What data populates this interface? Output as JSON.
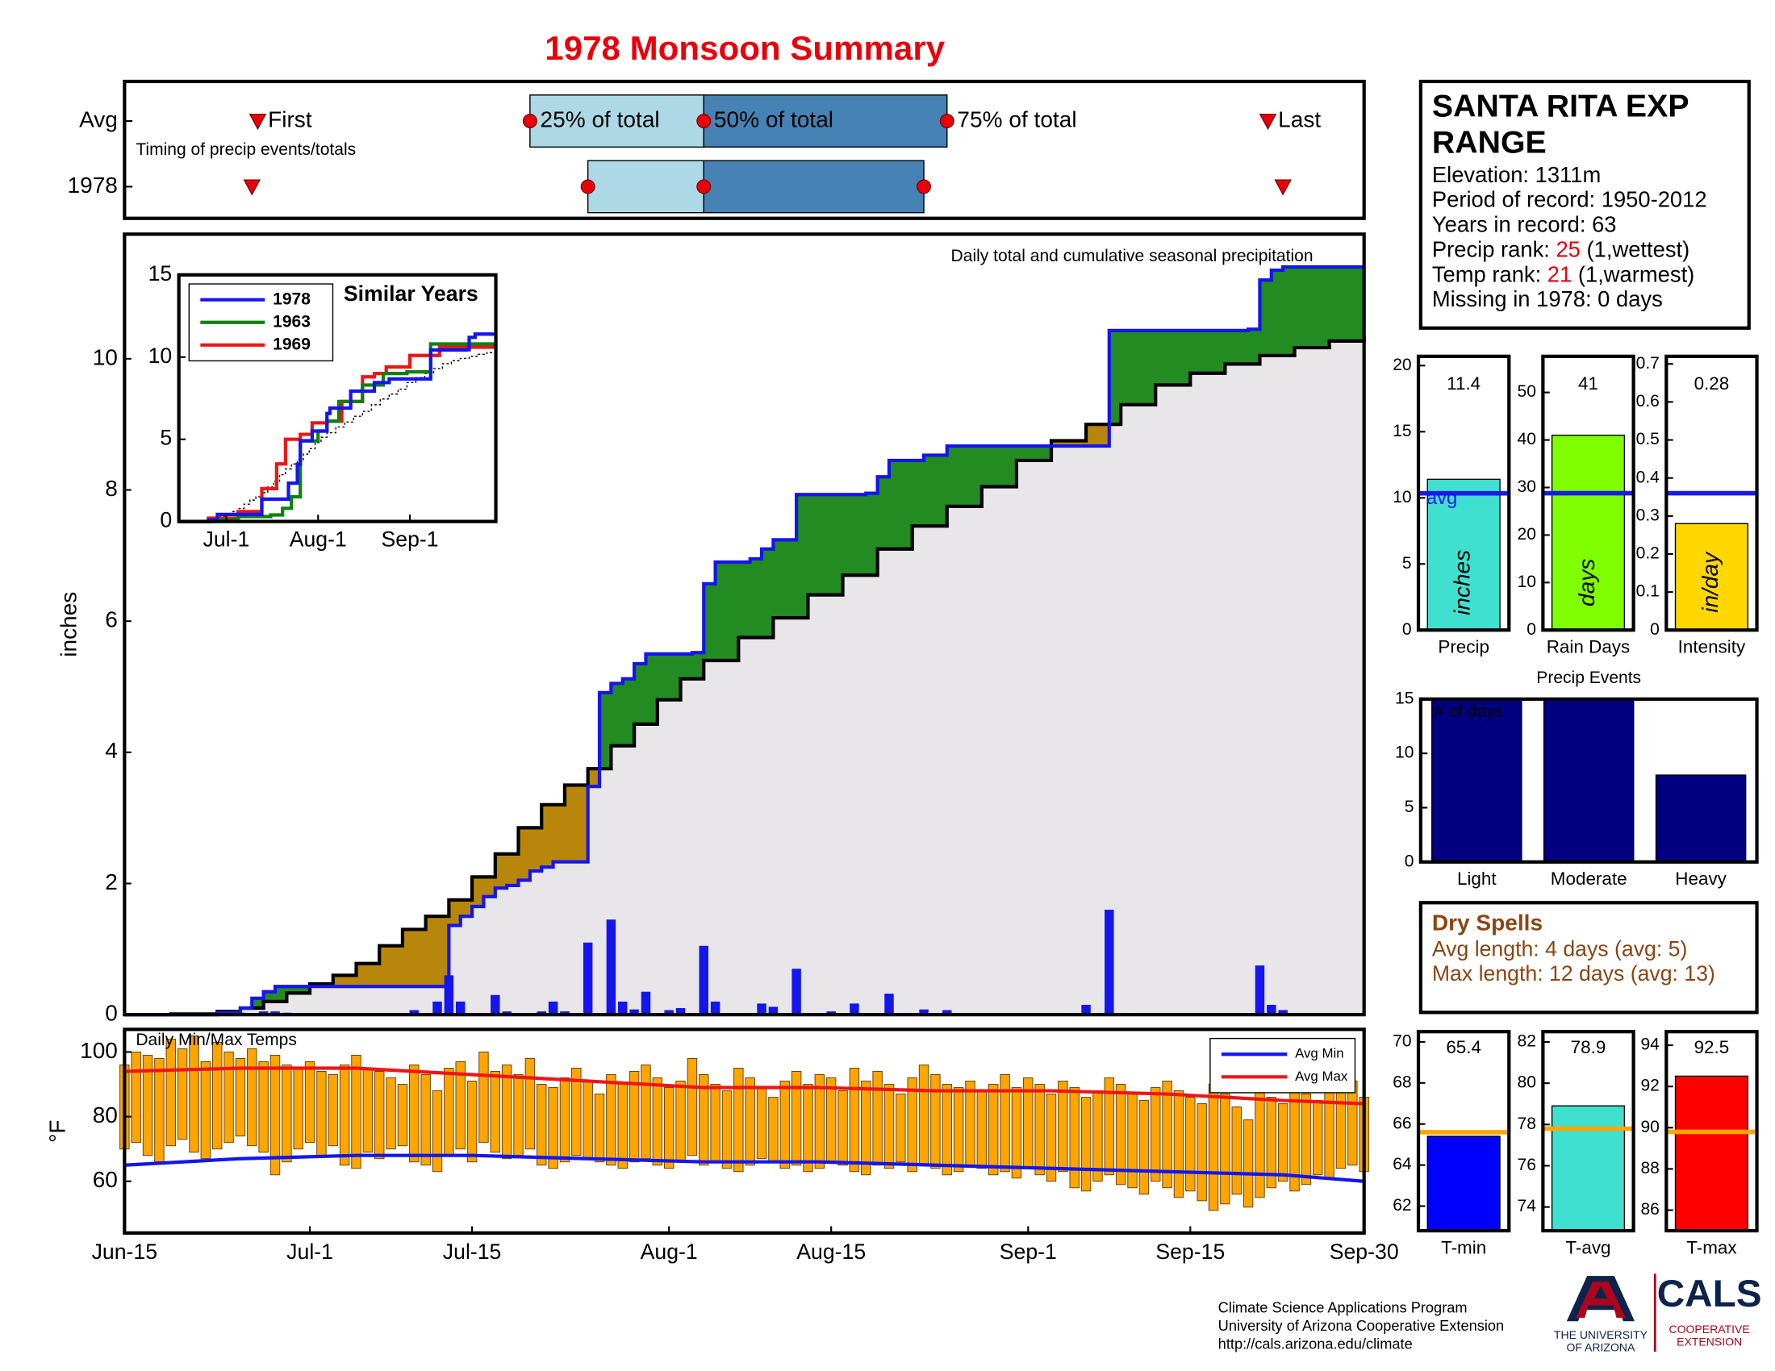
{
  "title": "1978 Monsoon Summary",
  "chart_data": [
    {
      "type": "timing",
      "title": "Timing of precip events/totals",
      "xlim": [
        0,
        107
      ],
      "event_labels": [
        "First",
        "25% of total",
        "50% of total",
        "75% of total",
        "Last"
      ],
      "marker_color": "#e8000b",
      "box_colors": [
        "#add8e6",
        "#4682b4"
      ],
      "series": [
        {
          "name": "Avg",
          "values": [
            11.5,
            35,
            50,
            71,
            98.7
          ]
        },
        {
          "name": "1978",
          "values": [
            11,
            40,
            50,
            69,
            100
          ]
        }
      ]
    },
    {
      "type": "area",
      "title": "Daily total and cumulative seasonal precipitation",
      "y_label": "inches",
      "xlim": [
        0,
        107
      ],
      "ylim": [
        0,
        11.9
      ],
      "yticks": [
        0,
        2,
        4,
        6,
        8,
        10
      ],
      "above_color": "#228b22",
      "below_color": "#b8860b",
      "fill_color": "#e8e6e8",
      "cumulative": {
        "color": "#1515ee",
        "x": [
          0,
          8,
          10,
          11,
          12,
          13,
          27,
          28,
          29,
          30,
          31,
          32,
          33,
          34,
          35,
          36,
          37,
          39,
          40,
          41,
          42,
          43,
          44,
          45,
          49,
          50,
          51,
          54,
          55,
          56,
          58,
          64,
          65,
          66,
          69,
          71,
          84,
          85,
          97,
          98,
          99,
          100,
          107
        ],
        "values": [
          0,
          0.03,
          0.1,
          0.25,
          0.35,
          0.43,
          0.43,
          1.36,
          1.5,
          1.65,
          1.8,
          1.93,
          1.97,
          2.05,
          2.19,
          2.25,
          2.33,
          2.33,
          3.48,
          4.91,
          5.05,
          5.12,
          5.35,
          5.5,
          5.52,
          6.57,
          6.9,
          6.95,
          7.1,
          7.24,
          7.93,
          7.95,
          8.2,
          8.45,
          8.53,
          8.67,
          8.67,
          10.43,
          10.45,
          11.2,
          11.35,
          11.4,
          11.4
        ]
      },
      "average_cumulative": {
        "color": "#000000",
        "x": [
          0,
          4,
          8,
          10,
          12,
          14,
          16,
          18,
          20,
          22,
          24,
          26,
          28,
          30,
          32,
          34,
          36,
          38,
          40,
          42,
          44,
          46,
          48,
          50,
          53,
          56,
          59,
          62,
          65,
          68,
          71,
          74,
          77,
          80,
          83,
          86,
          89,
          92,
          95,
          98,
          101,
          104,
          107
        ],
        "values": [
          0,
          0.01,
          0.05,
          0.1,
          0.2,
          0.33,
          0.47,
          0.6,
          0.78,
          1.05,
          1.3,
          1.5,
          1.75,
          2.1,
          2.45,
          2.85,
          3.2,
          3.5,
          3.75,
          4.1,
          4.43,
          4.8,
          5.12,
          5.4,
          5.75,
          6.05,
          6.4,
          6.7,
          7.1,
          7.45,
          7.75,
          8.05,
          8.45,
          8.75,
          9.0,
          9.3,
          9.6,
          9.78,
          9.92,
          10.05,
          10.17,
          10.27,
          10.36
        ]
      },
      "daily": {
        "color": "#1515ee",
        "x": [
          10,
          12,
          13,
          14,
          25,
          27,
          28,
          29,
          32,
          33,
          36,
          37,
          38,
          40,
          42,
          43,
          44,
          45,
          47,
          48,
          50,
          51,
          55,
          56,
          58,
          61,
          63,
          66,
          69,
          71,
          83,
          85,
          98,
          99,
          100
        ],
        "values": [
          0.03,
          0.05,
          0.05,
          0.03,
          0.07,
          0.2,
          0.6,
          0.2,
          0.3,
          0.05,
          0.05,
          0.2,
          0.05,
          1.1,
          1.45,
          0.2,
          0.08,
          0.35,
          0.07,
          0.1,
          1.05,
          0.2,
          0.17,
          0.12,
          0.7,
          0.05,
          0.17,
          0.32,
          0.08,
          0.07,
          0.15,
          1.6,
          0.75,
          0.15,
          0.07
        ]
      }
    },
    {
      "type": "line",
      "title": "Similar Years",
      "xlim": [
        0,
        107
      ],
      "ylim": [
        0,
        15
      ],
      "xticks": [
        {
          "value": 16,
          "label": "Jul-1"
        },
        {
          "value": 47,
          "label": "Aug-1"
        },
        {
          "value": 78,
          "label": "Sep-1"
        }
      ],
      "yticks": [
        0,
        5,
        10,
        15
      ],
      "legend": "upper left",
      "series": [
        {
          "name": "1978",
          "color": "#1515ee",
          "x": [
            0,
            10,
            13,
            27,
            28,
            37,
            40,
            41,
            45,
            50,
            51,
            58,
            66,
            71,
            84,
            85,
            97,
            98,
            100,
            107
          ],
          "values": [
            0,
            0.1,
            0.43,
            0.43,
            1.36,
            2.33,
            3.48,
            4.91,
            5.5,
            6.57,
            6.9,
            7.93,
            8.45,
            8.67,
            8.67,
            10.43,
            10.45,
            11.2,
            11.4,
            11.4
          ]
        },
        {
          "name": "1963",
          "color": "#108010",
          "x": [
            0,
            12,
            20,
            31,
            35,
            38,
            41,
            47,
            50,
            54,
            62,
            69,
            77,
            85,
            107
          ],
          "values": [
            0,
            0.1,
            0.3,
            0.4,
            0.8,
            1.5,
            4.9,
            5.5,
            6.1,
            7.3,
            8.3,
            9.0,
            9.1,
            10.8,
            10.9
          ]
        },
        {
          "name": "1969",
          "color": "#ee1515",
          "x": [
            0,
            10,
            20,
            28,
            33,
            36,
            41,
            45,
            50,
            55,
            62,
            66,
            70,
            78,
            88,
            107
          ],
          "values": [
            0,
            0.2,
            0.6,
            2,
            3.5,
            5,
            5.3,
            6,
            6.1,
            7.3,
            8.8,
            9.0,
            9.4,
            10.1,
            10.6,
            10.6
          ]
        }
      ]
    },
    {
      "type": "range",
      "title": "Daily Min/Max Temps",
      "y_label": "°F",
      "xlim": [
        0,
        107
      ],
      "ylim": [
        44,
        107
      ],
      "xticks": [
        {
          "value": 0,
          "label": "Jun-15"
        },
        {
          "value": 16,
          "label": "Jul-1"
        },
        {
          "value": 30,
          "label": "Jul-15"
        },
        {
          "value": 47,
          "label": "Aug-1"
        },
        {
          "value": 61,
          "label": "Aug-15"
        },
        {
          "value": 78,
          "label": "Sep-1"
        },
        {
          "value": 92,
          "label": "Sep-15"
        },
        {
          "value": 107,
          "label": "Sep-30"
        }
      ],
      "yticks": [
        60,
        80,
        100
      ],
      "legend": "upper right",
      "bar_color": "#ffa500",
      "x": [
        0,
        1,
        2,
        3,
        4,
        5,
        6,
        7,
        8,
        9,
        10,
        11,
        12,
        13,
        14,
        15,
        16,
        17,
        18,
        19,
        20,
        21,
        22,
        23,
        24,
        25,
        26,
        27,
        28,
        29,
        30,
        31,
        32,
        33,
        34,
        35,
        36,
        37,
        38,
        39,
        40,
        41,
        42,
        43,
        44,
        45,
        46,
        47,
        48,
        49,
        50,
        51,
        52,
        53,
        54,
        55,
        56,
        57,
        58,
        59,
        60,
        61,
        62,
        63,
        64,
        65,
        66,
        67,
        68,
        69,
        70,
        71,
        72,
        73,
        74,
        75,
        76,
        77,
        78,
        79,
        80,
        81,
        82,
        83,
        84,
        85,
        86,
        87,
        88,
        89,
        90,
        91,
        92,
        93,
        94,
        95,
        96,
        97,
        98,
        99,
        100,
        101,
        102,
        103,
        104,
        105,
        106,
        107
      ],
      "high": [
        96,
        100,
        99,
        98,
        104,
        101,
        105,
        97,
        103,
        100,
        98,
        101,
        97,
        99,
        96,
        95,
        97,
        94,
        93,
        96,
        99,
        95,
        94,
        92,
        90,
        96,
        93,
        88,
        95,
        97,
        91,
        100,
        94,
        96,
        93,
        98,
        90,
        89,
        92,
        95,
        91,
        87,
        93,
        90,
        94,
        96,
        92,
        89,
        91,
        98,
        93,
        90,
        88,
        95,
        92,
        89,
        86,
        91,
        94,
        90,
        93,
        92,
        88,
        95,
        91,
        94,
        90,
        87,
        92,
        96,
        93,
        90,
        89,
        91,
        88,
        90,
        93,
        89,
        92,
        90,
        87,
        91,
        89,
        86,
        88,
        92,
        90,
        87,
        85,
        89,
        91,
        88,
        86,
        84,
        90,
        87,
        83,
        79,
        88,
        86,
        84,
        89,
        87,
        85,
        90,
        88,
        91,
        86
      ],
      "low": [
        70,
        72,
        68,
        66,
        71,
        73,
        69,
        67,
        70,
        72,
        74,
        71,
        69,
        62,
        66,
        70,
        72,
        68,
        71,
        65,
        64,
        69,
        67,
        70,
        71,
        66,
        65,
        63,
        68,
        70,
        66,
        72,
        69,
        67,
        68,
        70,
        65,
        64,
        66,
        68,
        67,
        66,
        65,
        64,
        66,
        67,
        65,
        64,
        66,
        68,
        65,
        66,
        64,
        63,
        65,
        67,
        66,
        64,
        65,
        63,
        64,
        66,
        65,
        63,
        62,
        65,
        64,
        66,
        63,
        65,
        64,
        62,
        63,
        65,
        64,
        62,
        63,
        61,
        64,
        62,
        60,
        63,
        58,
        57,
        60,
        62,
        59,
        58,
        56,
        60,
        58,
        55,
        57,
        54,
        51,
        53,
        56,
        52,
        55,
        58,
        60,
        57,
        59,
        62,
        61,
        64,
        65,
        63
      ],
      "series": [
        {
          "name": "Avg Min",
          "color": "#1515ee",
          "x": [
            0,
            10,
            20,
            30,
            40,
            50,
            60,
            70,
            80,
            90,
            100,
            107
          ],
          "values": [
            65,
            67,
            68,
            68,
            67,
            66,
            66,
            65,
            64,
            63,
            62,
            60
          ]
        },
        {
          "name": "Avg Max",
          "color": "#ee1515",
          "x": [
            0,
            10,
            20,
            30,
            40,
            50,
            60,
            70,
            80,
            90,
            100,
            107
          ],
          "values": [
            94,
            95,
            95,
            93,
            91,
            89,
            89,
            88,
            88,
            87,
            85,
            84
          ]
        }
      ]
    },
    {
      "type": "bar",
      "categories": [
        "Precip"
      ],
      "values": [
        11.4
      ],
      "color": "#40e0d0",
      "ylim": [
        0,
        20.7
      ],
      "yticks": [
        0,
        5,
        10,
        15,
        20
      ],
      "average": 10.34,
      "average_color": "#1a1ae6",
      "average_label": "avg",
      "unit_label": "inches",
      "data_labels": true
    },
    {
      "type": "bar",
      "categories": [
        "Rain Days"
      ],
      "values": [
        41
      ],
      "color": "#7fff00",
      "ylim": [
        0,
        57.6
      ],
      "yticks": [
        0,
        10,
        20,
        30,
        40,
        50
      ],
      "average": 28.8,
      "average_color": "#1a1ae6",
      "unit_label": "days",
      "data_labels": true
    },
    {
      "type": "bar",
      "categories": [
        "Intensity"
      ],
      "values": [
        0.28
      ],
      "color": "#ffd700",
      "ylim": [
        0,
        0.72
      ],
      "yticks": [
        0,
        0.1,
        0.2,
        0.3,
        0.4,
        0.5,
        0.6,
        0.7
      ],
      "average": 0.36,
      "average_color": "#1a1ae6",
      "unit_label": "in/day",
      "data_labels": true
    },
    {
      "type": "bar",
      "title": "Precip Events",
      "y_label": "# of days",
      "categories": [
        "Light",
        "Moderate",
        "Heavy"
      ],
      "values": [
        15,
        15,
        8
      ],
      "color": "#000080",
      "ylim": [
        0,
        15
      ],
      "yticks": [
        0,
        5,
        10,
        15
      ],
      "data_labels": false
    },
    {
      "type": "bar",
      "categories": [
        "T-min"
      ],
      "values": [
        65.4
      ],
      "color": "#0000ff",
      "ylim": [
        60.8,
        70.5
      ],
      "yticks": [
        62,
        64,
        66,
        68,
        70
      ],
      "average": 65.6,
      "average_color": "#ffa500",
      "data_labels": true
    },
    {
      "type": "bar",
      "categories": [
        "T-avg"
      ],
      "values": [
        78.9
      ],
      "color": "#40e0d0",
      "ylim": [
        72.85,
        82.5
      ],
      "yticks": [
        74,
        76,
        78,
        80,
        82
      ],
      "average": 77.8,
      "average_color": "#ffa500",
      "data_labels": true
    },
    {
      "type": "bar",
      "categories": [
        "T-max"
      ],
      "values": [
        92.5
      ],
      "color": "#ff0000",
      "ylim": [
        85,
        94.66
      ],
      "yticks": [
        86,
        88,
        90,
        92,
        94
      ],
      "average": 89.8,
      "average_color": "#ffa500",
      "data_labels": true
    }
  ],
  "station": {
    "name": "SANTA RITA EXP RANGE",
    "elevation": "Elevation: 1311m",
    "period": "Period of record: 1950-2012",
    "years": "Years in record: 63",
    "precip_rank": {
      "label": "Precip rank:",
      "value": 25,
      "note": "(1,wettest)"
    },
    "temp_rank": {
      "label": "Temp rank:",
      "value": 21,
      "note": "(1,warmest)"
    },
    "missing": "Missing in 1978: 0 days"
  },
  "dry_spells": {
    "title": "Dry Spells",
    "lines": [
      "Avg length: 4 days (avg: 5)",
      "Max length: 12 days (avg: 13)"
    ]
  },
  "footer": {
    "lines": [
      "Climate Science Applications Program",
      "University of Arizona Cooperative Extension",
      "http://cals.arizona.edu/climate"
    ],
    "university": [
      "THE UNIVERSITY",
      "OF ARIZONA"
    ],
    "cals": "CALS",
    "extension": [
      "COOPERATIVE",
      "EXTENSION"
    ]
  }
}
